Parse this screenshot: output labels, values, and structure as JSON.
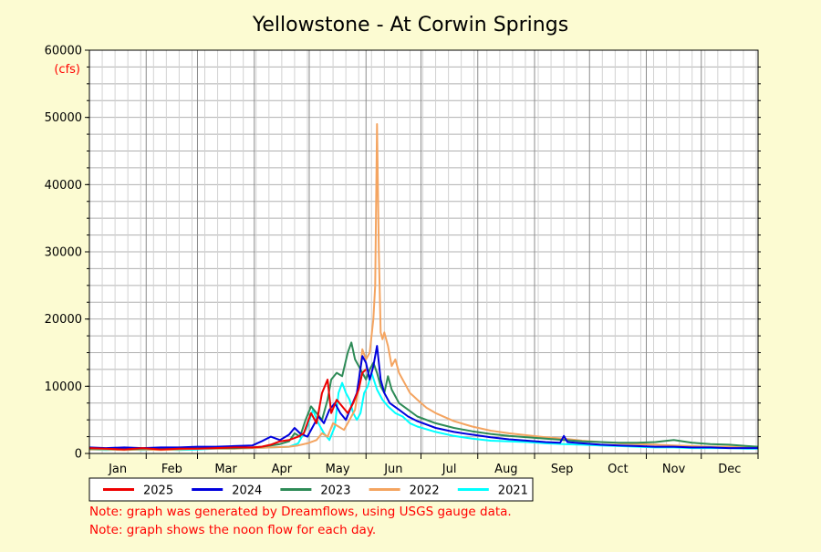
{
  "chart_data": {
    "type": "line",
    "title": "Yellowstone - At Corwin Springs",
    "ylabel": "(cfs)",
    "ylim": [
      0,
      60000
    ],
    "yticks": [
      0,
      10000,
      20000,
      30000,
      40000,
      50000,
      60000
    ],
    "xlim": [
      1,
      366
    ],
    "months": [
      "Jan",
      "Feb",
      "Mar",
      "Apr",
      "May",
      "Jun",
      "Jul",
      "Aug",
      "Sep",
      "Oct",
      "Nov",
      "Dec"
    ],
    "grid": true,
    "legend_position": "bottom",
    "series": [
      {
        "name": "2025",
        "color": "#ee0000",
        "x": [
          1,
          10,
          20,
          30,
          40,
          50,
          60,
          70,
          80,
          90,
          95,
          100,
          105,
          110,
          115,
          118,
          122,
          125,
          128,
          131,
          133,
          136,
          139,
          142,
          145,
          148,
          150,
          152
        ],
        "y": [
          800,
          700,
          600,
          800,
          600,
          700,
          700,
          800,
          900,
          900,
          1000,
          1300,
          1800,
          2000,
          2500,
          3000,
          6000,
          4500,
          9000,
          11000,
          6000,
          8000,
          7000,
          6000,
          7500,
          9500,
          12000,
          12500
        ]
      },
      {
        "name": "2024",
        "color": "#0000dd",
        "x": [
          1,
          10,
          20,
          30,
          40,
          50,
          60,
          70,
          80,
          90,
          95,
          100,
          105,
          110,
          113,
          116,
          120,
          123,
          126,
          129,
          132,
          135,
          138,
          141,
          144,
          147,
          150,
          152,
          154,
          156,
          158,
          160,
          162,
          165,
          170,
          175,
          180,
          190,
          200,
          210,
          220,
          230,
          240,
          250,
          258,
          260,
          262,
          270,
          280,
          290,
          300,
          310,
          320,
          330,
          340,
          350,
          360,
          366
        ],
        "y": [
          900,
          800,
          900,
          800,
          900,
          900,
          1000,
          1000,
          1100,
          1200,
          1800,
          2500,
          2000,
          2800,
          3800,
          3000,
          2500,
          4000,
          5500,
          4500,
          6500,
          7500,
          6000,
          5000,
          7000,
          9000,
          14500,
          13500,
          11000,
          13000,
          16000,
          11000,
          9000,
          7500,
          6500,
          5500,
          4800,
          3800,
          3200,
          2800,
          2400,
          2100,
          1900,
          1700,
          1600,
          2600,
          1700,
          1500,
          1300,
          1200,
          1100,
          1000,
          1000,
          900,
          900,
          800,
          800,
          800
        ]
      },
      {
        "name": "2023",
        "color": "#2e8b57",
        "x": [
          1,
          10,
          20,
          30,
          40,
          50,
          60,
          70,
          80,
          90,
          95,
          100,
          105,
          110,
          113,
          116,
          119,
          122,
          125,
          128,
          131,
          133,
          136,
          139,
          142,
          144,
          146,
          148,
          150,
          152,
          154,
          156,
          158,
          160,
          162,
          164,
          166,
          168,
          170,
          175,
          180,
          190,
          200,
          210,
          220,
          230,
          240,
          250,
          260,
          270,
          280,
          290,
          300,
          310,
          320,
          330,
          340,
          350,
          360,
          366
        ],
        "y": [
          700,
          700,
          600,
          700,
          700,
          700,
          800,
          800,
          800,
          900,
          1000,
          1200,
          1400,
          1800,
          3000,
          2500,
          5000,
          7000,
          6000,
          5000,
          8000,
          11000,
          12000,
          11500,
          15000,
          16500,
          14000,
          13000,
          12000,
          11000,
          12500,
          13500,
          12000,
          10000,
          9000,
          11500,
          9500,
          8500,
          7500,
          6500,
          5500,
          4500,
          3800,
          3300,
          2900,
          2600,
          2400,
          2200,
          2000,
          1800,
          1700,
          1600,
          1600,
          1700,
          2000,
          1600,
          1400,
          1300,
          1100,
          1000
        ]
      },
      {
        "name": "2022",
        "color": "#f4a460",
        "x": [
          1,
          10,
          20,
          30,
          40,
          50,
          60,
          70,
          80,
          90,
          100,
          110,
          115,
          120,
          125,
          128,
          131,
          134,
          137,
          140,
          143,
          146,
          148,
          150,
          152,
          154,
          156,
          157,
          158,
          159,
          160,
          161,
          162,
          164,
          166,
          168,
          170,
          172,
          174,
          176,
          178,
          180,
          185,
          190,
          200,
          210,
          220,
          230,
          240,
          250,
          260,
          270,
          280,
          290,
          300,
          310,
          320,
          330,
          340,
          350,
          360,
          366
        ],
        "y": [
          600,
          600,
          500,
          600,
          500,
          600,
          700,
          700,
          700,
          800,
          900,
          1000,
          1200,
          1500,
          2000,
          3000,
          2500,
          4500,
          4000,
          3500,
          5000,
          6500,
          10000,
          15500,
          14000,
          15000,
          20000,
          25000,
          49000,
          30000,
          18000,
          17000,
          18000,
          16000,
          13000,
          14000,
          12000,
          11000,
          10000,
          9000,
          8500,
          8000,
          6800,
          6000,
          4800,
          4000,
          3400,
          3000,
          2700,
          2400,
          2200,
          1900,
          1700,
          1500,
          1400,
          1300,
          1200,
          1100,
          1000,
          1000,
          900,
          900
        ]
      },
      {
        "name": "2021",
        "color": "#00ffff",
        "x": [
          1,
          10,
          20,
          30,
          40,
          50,
          60,
          70,
          80,
          90,
          100,
          110,
          115,
          120,
          123,
          126,
          129,
          132,
          135,
          137,
          139,
          141,
          143,
          145,
          147,
          149,
          151,
          153,
          155,
          158,
          161,
          164,
          168,
          172,
          176,
          180,
          190,
          200,
          210,
          220,
          230,
          240,
          250,
          260,
          270,
          280,
          290,
          300,
          310,
          320,
          330,
          340,
          350,
          360,
          366
        ],
        "y": [
          600,
          500,
          600,
          500,
          600,
          500,
          600,
          700,
          700,
          800,
          900,
          1000,
          1500,
          4000,
          6500,
          4500,
          3000,
          2000,
          4000,
          9000,
          10500,
          9000,
          8000,
          6000,
          5000,
          6000,
          9000,
          10000,
          12000,
          9500,
          8000,
          7000,
          6000,
          5500,
          4500,
          4000,
          3200,
          2600,
          2200,
          1900,
          1800,
          1700,
          1500,
          1400,
          1300,
          1200,
          1100,
          1000,
          900,
          900,
          800,
          800,
          800,
          700,
          700
        ]
      }
    ]
  },
  "notes": [
    "Note: graph was generated by Dreamflows, using USGS gauge data.",
    "Note: graph shows the noon flow for each day."
  ]
}
